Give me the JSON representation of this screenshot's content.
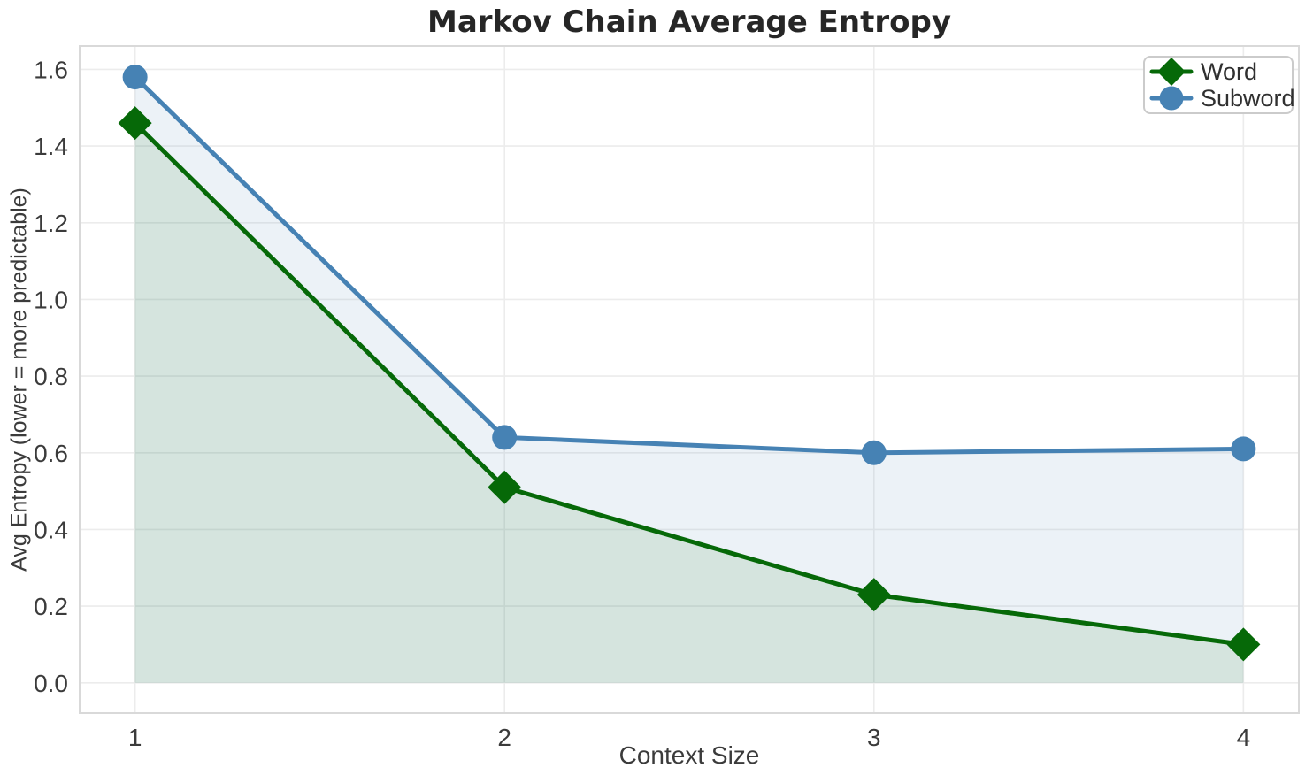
{
  "figure": {
    "title": "Markov Chain Average Entropy",
    "xlabel": "Context Size",
    "ylabel": "Avg Entropy (lower = more predictable)"
  },
  "chart_data": {
    "type": "line",
    "title": "Markov Chain Average Entropy",
    "xlabel": "Context Size",
    "ylabel": "Avg Entropy (lower = more predictable)",
    "x": [
      1,
      2,
      3,
      4
    ],
    "series": [
      {
        "name": "Word",
        "values": [
          1.46,
          0.51,
          0.23,
          0.1
        ],
        "color": "#066908",
        "fill_color": "rgba(6,105,8,0.10)",
        "marker": "diamond",
        "area_fill_to_zero": true
      },
      {
        "name": "Subword",
        "values": [
          1.58,
          0.64,
          0.6,
          0.61
        ],
        "color": "#4682b4",
        "fill_color": "rgba(70,130,180,0.10)",
        "marker": "circle",
        "area_fill_to_zero": true
      }
    ],
    "xticks": [
      "1",
      "2",
      "3",
      "4"
    ],
    "yticks": [
      "0.0",
      "0.2",
      "0.4",
      "0.6",
      "0.8",
      "1.0",
      "1.2",
      "1.4",
      "1.6"
    ],
    "xlim": [
      0.85,
      4.15
    ],
    "ylim": [
      -0.079,
      1.661
    ],
    "grid": true,
    "legend_position": "upper right",
    "style": {
      "grid_color": "#ececec",
      "spine_color": "#d9d9d9",
      "title_color": "#262626",
      "tick_color": "#3b3b3b",
      "line_width": 5
    }
  }
}
